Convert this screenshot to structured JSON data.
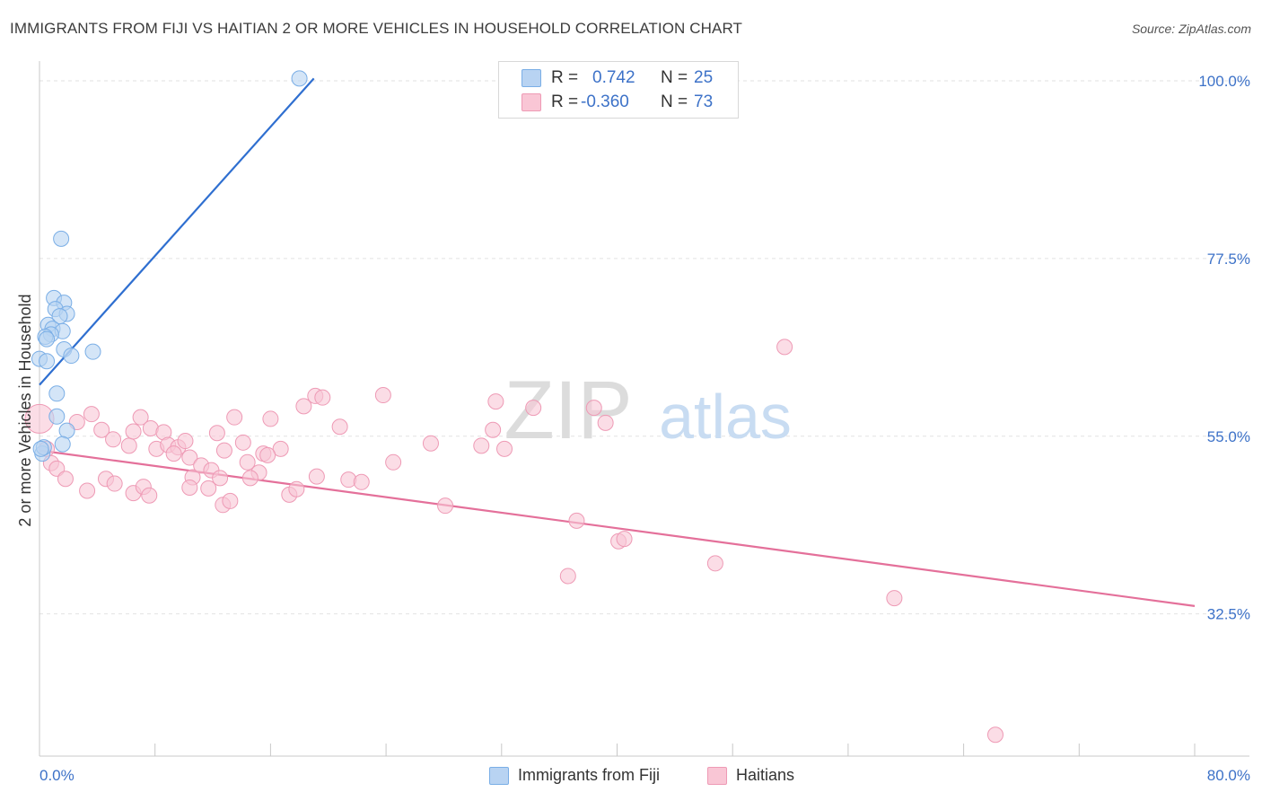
{
  "title": "IMMIGRANTS FROM FIJI VS HAITIAN 2 OR MORE VEHICLES IN HOUSEHOLD CORRELATION CHART",
  "source": "Source: ZipAtlas.com",
  "watermark": {
    "zip": "ZIP",
    "atlas": "atlas"
  },
  "stats": [
    {
      "r_label": "R =",
      "r_value": "0.742",
      "n_label": "N =",
      "n_value": "25"
    },
    {
      "r_label": "R =",
      "r_value": "-0.360",
      "n_label": "N =",
      "n_value": "73"
    }
  ],
  "legend": [
    "Immigrants from Fiji",
    "Haitians"
  ],
  "colors": {
    "fiji_fill": "#b8d3f2",
    "fiji_stroke": "#7aaee6",
    "fiji_line": "#2f6fd0",
    "haiti_fill": "#f9c6d5",
    "haiti_stroke": "#ee9ab5",
    "haiti_line": "#e4709a",
    "axis_label": "#3d72c8",
    "grid": "#e2e2e2"
  },
  "chart_data": {
    "type": "scatter",
    "title": "IMMIGRANTS FROM FIJI VS HAITIAN 2 OR MORE VEHICLES IN HOUSEHOLD CORRELATION CHART",
    "xlabel": "",
    "ylabel": "2 or more Vehicles in Household",
    "xlim": [
      0,
      80
    ],
    "ylim": [
      14.5,
      102.5
    ],
    "x_tick_labels": [
      {
        "value": 0,
        "label": "0.0%"
      },
      {
        "value": 80,
        "label": "80.0%"
      }
    ],
    "y_tick_labels": [
      {
        "value": 100,
        "label": "100.0%"
      },
      {
        "value": 77.5,
        "label": "77.5%"
      },
      {
        "value": 55,
        "label": "55.0%"
      },
      {
        "value": 32.5,
        "label": "32.5%"
      }
    ],
    "x_minor_ticks": [
      0,
      8,
      16,
      24,
      32,
      40,
      48,
      56,
      64,
      72,
      80
    ],
    "series": [
      {
        "name": "Immigrants from Fiji",
        "r": 0.742,
        "n": 25,
        "trend": [
          [
            0.0,
            61.5
          ],
          [
            19.0,
            100.3
          ]
        ],
        "points": [
          [
            18.0,
            100.3
          ],
          [
            1.5,
            80.0
          ],
          [
            1.0,
            72.5
          ],
          [
            1.7,
            71.9
          ],
          [
            1.1,
            71.1
          ],
          [
            1.9,
            70.5
          ],
          [
            1.4,
            70.2
          ],
          [
            0.6,
            69.1
          ],
          [
            0.9,
            68.6
          ],
          [
            1.6,
            68.3
          ],
          [
            0.8,
            67.9
          ],
          [
            0.4,
            67.6
          ],
          [
            0.5,
            67.3
          ],
          [
            1.7,
            66.0
          ],
          [
            3.7,
            65.7
          ],
          [
            2.2,
            65.2
          ],
          [
            0.0,
            64.8
          ],
          [
            0.5,
            64.5
          ],
          [
            1.2,
            60.4
          ],
          [
            1.2,
            57.5
          ],
          [
            1.9,
            55.7
          ],
          [
            1.6,
            54.0
          ],
          [
            0.2,
            52.8
          ],
          [
            0.3,
            53.6
          ],
          [
            0.1,
            53.4
          ]
        ]
      },
      {
        "name": "Haitians",
        "r": -0.36,
        "n": 73,
        "trend": [
          [
            0.0,
            53.2
          ],
          [
            80.0,
            33.5
          ]
        ],
        "points": [
          [
            0.0,
            57.2
          ],
          [
            0.5,
            53.4
          ],
          [
            0.8,
            51.6
          ],
          [
            1.2,
            50.9
          ],
          [
            1.8,
            49.6
          ],
          [
            3.3,
            48.1
          ],
          [
            2.6,
            56.8
          ],
          [
            3.6,
            57.8
          ],
          [
            4.3,
            55.8
          ],
          [
            5.1,
            54.6
          ],
          [
            6.2,
            53.8
          ],
          [
            6.5,
            55.6
          ],
          [
            7.0,
            57.4
          ],
          [
            7.7,
            56.0
          ],
          [
            8.1,
            53.4
          ],
          [
            8.6,
            55.5
          ],
          [
            8.9,
            53.9
          ],
          [
            9.6,
            53.6
          ],
          [
            9.3,
            52.8
          ],
          [
            10.1,
            54.4
          ],
          [
            10.4,
            52.3
          ],
          [
            10.6,
            49.8
          ],
          [
            11.2,
            51.3
          ],
          [
            11.7,
            48.4
          ],
          [
            11.9,
            50.7
          ],
          [
            12.5,
            49.7
          ],
          [
            4.6,
            49.6
          ],
          [
            5.2,
            49.0
          ],
          [
            6.5,
            47.8
          ],
          [
            7.2,
            48.6
          ],
          [
            7.6,
            47.5
          ],
          [
            10.4,
            48.5
          ],
          [
            12.7,
            46.3
          ],
          [
            13.5,
            57.4
          ],
          [
            14.1,
            54.2
          ],
          [
            13.2,
            46.8
          ],
          [
            12.8,
            53.2
          ],
          [
            14.4,
            51.7
          ],
          [
            15.5,
            52.8
          ],
          [
            16.0,
            57.2
          ],
          [
            15.2,
            50.4
          ],
          [
            16.7,
            53.4
          ],
          [
            17.3,
            47.6
          ],
          [
            17.8,
            48.3
          ],
          [
            18.3,
            58.8
          ],
          [
            19.1,
            60.1
          ],
          [
            19.6,
            59.9
          ],
          [
            19.2,
            49.9
          ],
          [
            20.8,
            56.2
          ],
          [
            21.4,
            49.5
          ],
          [
            22.3,
            49.2
          ],
          [
            24.5,
            51.7
          ],
          [
            23.8,
            60.2
          ],
          [
            27.1,
            54.1
          ],
          [
            28.1,
            46.2
          ],
          [
            30.6,
            53.8
          ],
          [
            31.4,
            55.8
          ],
          [
            32.2,
            53.4
          ],
          [
            31.6,
            59.4
          ],
          [
            34.2,
            58.6
          ],
          [
            38.4,
            58.6
          ],
          [
            39.2,
            56.7
          ],
          [
            36.6,
            37.3
          ],
          [
            37.2,
            44.3
          ],
          [
            40.1,
            41.7
          ],
          [
            40.5,
            42.0
          ],
          [
            46.8,
            38.9
          ],
          [
            51.6,
            66.3
          ],
          [
            59.2,
            34.5
          ],
          [
            66.2,
            17.2
          ],
          [
            12.3,
            55.4
          ],
          [
            14.6,
            49.7
          ],
          [
            15.8,
            52.6
          ]
        ]
      }
    ],
    "grid": true,
    "legend_position": "bottom"
  }
}
